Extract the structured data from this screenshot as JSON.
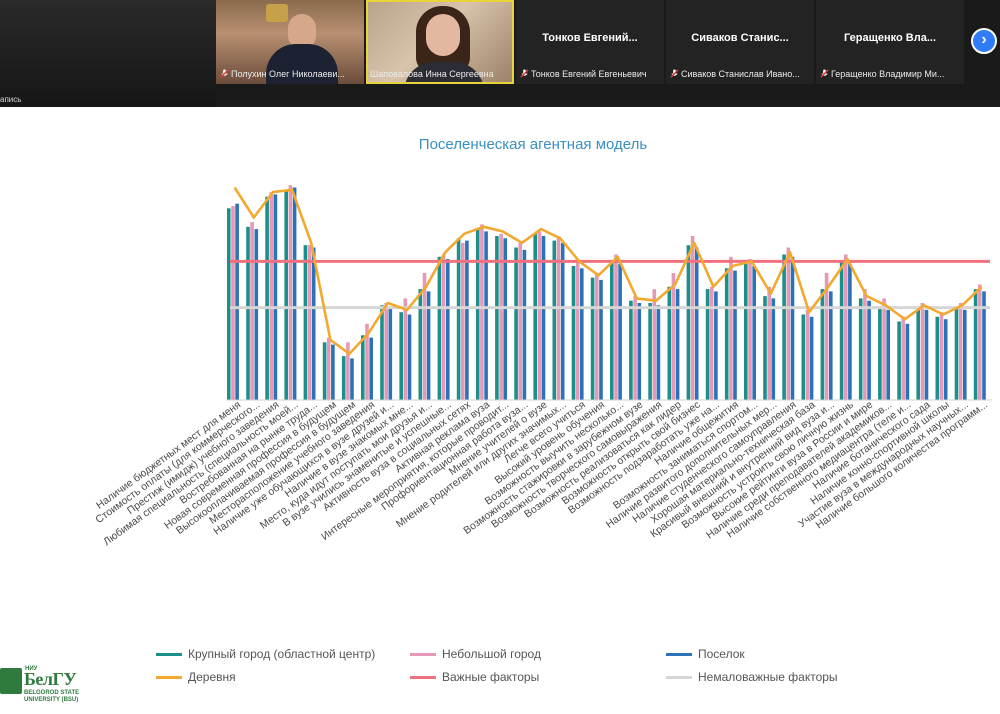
{
  "conference": {
    "recording_label": "апись",
    "participants": [
      {
        "full_name": "Полухин Олег Николаеви...",
        "short_name": ""
      },
      {
        "full_name": "Шаповалова Инна Сергеевна",
        "short_name": ""
      },
      {
        "full_name": "Тонков Евгений Евгеньевич",
        "short_name": "Тонков  Евгений..."
      },
      {
        "full_name": "Сиваков Станислав Ивано...",
        "short_name": "Сиваков  Станис..."
      },
      {
        "full_name": "Геращенко Владимир Ми...",
        "short_name": "Геращенко  Вла..."
      }
    ],
    "next_icon": "chevron-right-icon"
  },
  "colors": {
    "big_city": "#1b8f8a",
    "small_town": "#e49ab6",
    "settlement": "#2a73b8",
    "village": "#f2a930",
    "important": "#f0707e",
    "minor": "#d6d6d6",
    "title": "#3a8fc1"
  },
  "chart_data": {
    "type": "bar",
    "title": "Поселенческая агентная модель",
    "categories": [
      "Наличие бюджетных мест для меня",
      "Стоимость оплаты (для коммерческого...",
      "Престиж (имидж) учебного заведения",
      "Любимая специальность (специальность моей...",
      "Востребованная на рынке труда...",
      "Новая современная профессия в будущем",
      "Высокооплачиваемая профессия в будущем",
      "Месторасположение учебного заведения",
      "Наличие уже обучающихся в вузе друзей и...",
      "Наличие в вузе знакомых мне...",
      "Место, куда идут поступать мои друзья и...",
      "В вузе учились знаменитые и успешные...",
      "Активность вуза в социальных сетях",
      "Активная реклама вуза",
      "Интересные мероприятия, которые проводит...",
      "Профориентационная работа вуза...",
      "Мнение учителей о вузе",
      "Мнение родителей или других значимых...",
      "Легче всего учиться",
      "Высокий уровень обучения",
      "Возможность выучить несколько...",
      "Возможность стажировки в зарубежном вузе",
      "Возможность творческого самовыражения",
      "Возможность реализоваться как лидер",
      "Возможность открыть свой бизнес",
      "Возможность подзаработать уже на...",
      "Наличие общежития",
      "Возможность заниматься спортом...",
      "Наличие развитого дополнительных мер...",
      "Наличие студенческого самоуправления",
      "Хорошая материально-техническая база",
      "Красивый внешний и внутренний вид вуза и...",
      "Возможность устроить свою личную жизнь",
      "Высокие рейтинги вуза в России и мире",
      "Наличие среди преподавателей академиков...",
      "Наличие собственного медиацентра (теле и...",
      "Наличие ботанического сада",
      "Наличие конно-спортивной школы",
      "Участие вуза в международных научных...",
      "Наличие большого количества программ..."
    ],
    "series": [
      {
        "name": "Крупный город (областной центр)",
        "color": "#1b8f8a",
        "values": [
          83,
          75,
          88,
          91,
          67,
          25,
          19,
          28,
          41,
          38,
          48,
          62,
          70,
          74,
          71,
          66,
          72,
          69,
          58,
          53,
          60,
          43,
          42,
          49,
          67,
          48,
          57,
          59,
          45,
          63,
          37,
          48,
          60,
          44,
          40,
          34,
          40,
          36,
          40,
          48
        ]
      },
      {
        "name": "Небольшой город",
        "color": "#e49ab6",
        "values": [
          84,
          77,
          90,
          93,
          67,
          27,
          25,
          33,
          42,
          44,
          55,
          63,
          68,
          76,
          72,
          68,
          73,
          71,
          61,
          55,
          63,
          45,
          48,
          55,
          71,
          49,
          62,
          61,
          49,
          66,
          39,
          55,
          63,
          48,
          44,
          36,
          42,
          38,
          42,
          50
        ]
      },
      {
        "name": "Поселок",
        "color": "#2a73b8",
        "values": [
          85,
          74,
          89,
          92,
          66,
          24,
          18,
          27,
          40,
          37,
          47,
          61,
          69,
          73,
          70,
          65,
          71,
          68,
          57,
          52,
          59,
          42,
          41,
          48,
          66,
          47,
          56,
          58,
          44,
          62,
          36,
          47,
          59,
          43,
          39,
          33,
          39,
          35,
          39,
          47
        ]
      },
      {
        "name": "Деревня",
        "color": "#f2a930",
        "values": [
          92,
          79,
          90,
          91,
          68,
          26,
          20,
          29,
          42,
          39,
          49,
          64,
          72,
          75,
          73,
          68,
          74,
          70,
          60,
          54,
          62,
          44,
          43,
          50,
          68,
          49,
          58,
          60,
          46,
          64,
          38,
          49,
          61,
          45,
          41,
          35,
          41,
          37,
          41,
          49
        ]
      }
    ],
    "reference_lines": [
      {
        "name": "Важные факторы",
        "color": "#f0707e",
        "value": 60
      },
      {
        "name": "Немаловажные факторы",
        "color": "#d6d6d6",
        "value": 40
      }
    ],
    "ylim": [
      0,
      100
    ],
    "grid": false,
    "legend_position": "bottom"
  },
  "logo": {
    "niu": "НИУ",
    "name": "БелГУ",
    "line1": "BELGOROD STATE",
    "line2": "UNIVERSITY (BSU)"
  }
}
